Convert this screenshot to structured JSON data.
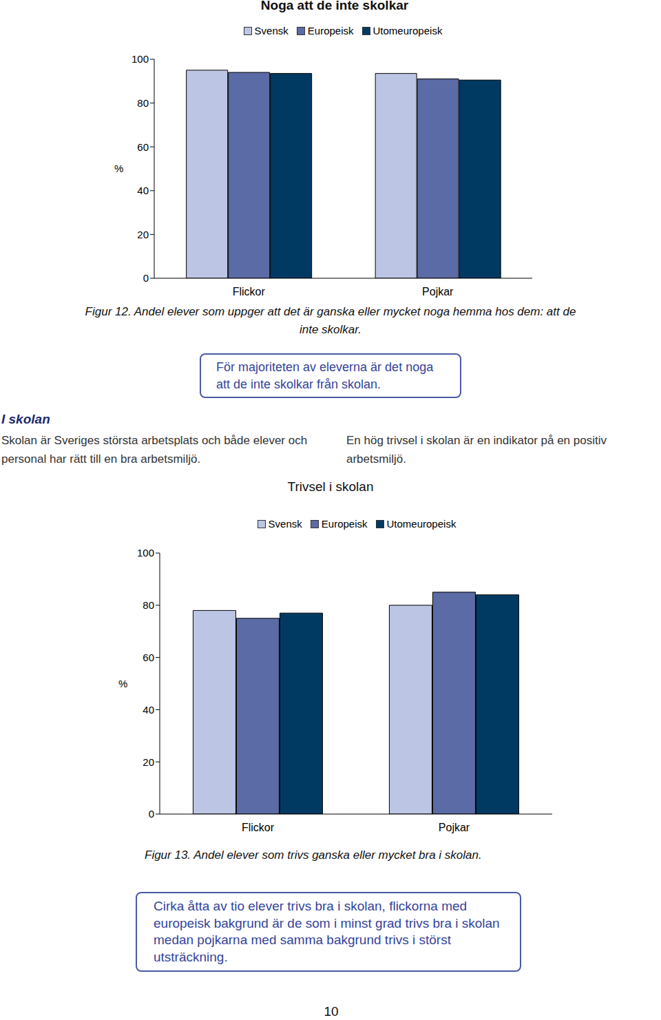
{
  "chart_data": [
    {
      "type": "bar",
      "title": "Noga att de inte skolkar",
      "ylabel": "%",
      "categories": [
        "Flickor",
        "Pojkar"
      ],
      "series": [
        {
          "name": "Svensk",
          "color": "#bcc6e4",
          "values": [
            95,
            93.5
          ]
        },
        {
          "name": "Europeisk",
          "color": "#5b6ba6",
          "values": [
            94,
            91
          ]
        },
        {
          "name": "Utomeuropeisk",
          "color": "#003a63",
          "values": [
            93.5,
            90.5
          ]
        }
      ],
      "ylim": [
        0,
        100
      ],
      "yticks": [
        0,
        20,
        40,
        60,
        80,
        100
      ],
      "grid": false,
      "legend": "top",
      "caption": "Figur 12. Andel elever som uppger att det är ganska eller mycket noga hemma hos dem: att de inte skolkar.",
      "annotation": "För majoriteten av eleverna är det noga att de inte skolkar från skolan."
    },
    {
      "type": "bar",
      "title": "Trivsel i skolan",
      "ylabel": "%",
      "categories": [
        "Flickor",
        "Pojkar"
      ],
      "series": [
        {
          "name": "Svensk",
          "color": "#bcc6e4",
          "values": [
            78,
            80
          ]
        },
        {
          "name": "Europeisk",
          "color": "#5b6ba6",
          "values": [
            75,
            85
          ]
        },
        {
          "name": "Utomeuropeisk",
          "color": "#003a63",
          "values": [
            77,
            84
          ]
        }
      ],
      "ylim": [
        0,
        100
      ],
      "yticks": [
        0,
        20,
        40,
        60,
        80,
        100
      ],
      "grid": false,
      "legend": "top",
      "caption": "Figur 13. Andel elever som trivs ganska eller mycket bra i skolan.",
      "annotation": "Cirka åtta av tio elever trivs bra i skolan, flickorna med europeisk bakgrund är de som i minst grad trivs bra i skolan medan pojkarna med samma bakgrund trivs i störst utsträckning."
    }
  ],
  "section": {
    "heading": "I skolan",
    "left_text": "Skolan är Sveriges största arbetsplats och både elever och personal har rätt till en bra arbetsmiljö.",
    "right_text": "En hög trivsel i skolan är en indikator på en positiv arbetsmiljö."
  },
  "page_number": "10"
}
